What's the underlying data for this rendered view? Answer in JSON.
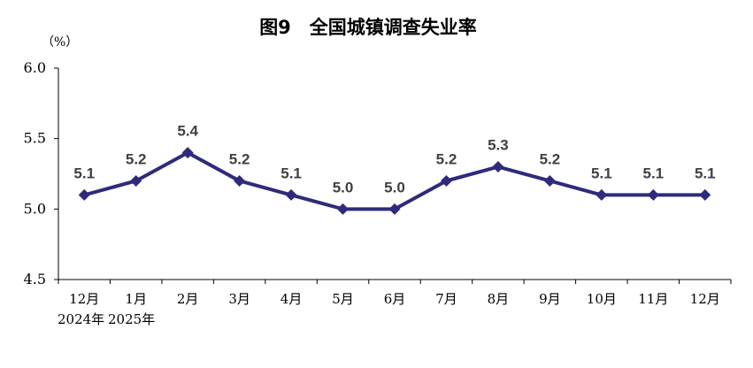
{
  "chart_data": {
    "type": "line",
    "title": "图9　全国城镇调查失业率",
    "unit": "（%）",
    "categories": [
      "12月",
      "1月",
      "2月",
      "3月",
      "4月",
      "5月",
      "6月",
      "7月",
      "8月",
      "9月",
      "10月",
      "11月",
      "12月"
    ],
    "year_labels": [
      "2024年",
      "2025年"
    ],
    "series": [
      {
        "values": [
          5.1,
          5.2,
          5.4,
          5.2,
          5.1,
          5.0,
          5.0,
          5.2,
          5.3,
          5.2,
          5.1,
          5.1,
          5.1
        ]
      }
    ],
    "ylim": [
      4.5,
      6.0
    ],
    "yticks": [
      "4.5",
      "5.0",
      "5.5",
      "6.0"
    ],
    "line_color": "#2e2a7c",
    "label_color": "#404040",
    "grid": false,
    "legend": "none"
  }
}
